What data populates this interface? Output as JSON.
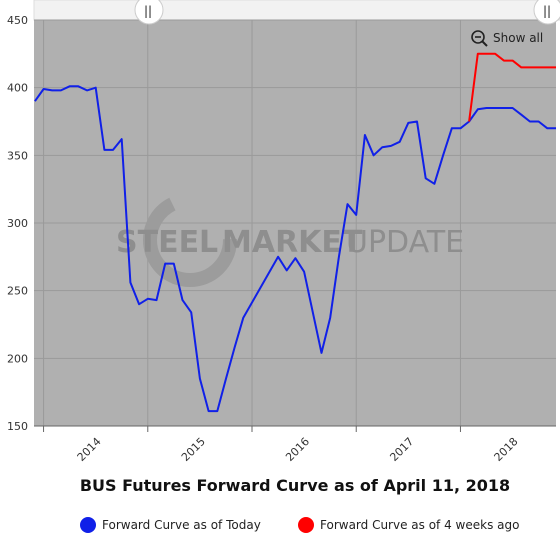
{
  "chart_data": {
    "type": "line",
    "title": "BUS Futures Forward Curve as of April 11, 2018",
    "xlabel": "",
    "ylabel": "",
    "ylim": [
      150,
      450
    ],
    "y_ticks": [
      150,
      200,
      250,
      300,
      350,
      400,
      450
    ],
    "x_tick_labels": [
      "2014",
      "2015",
      "2016",
      "2017",
      "2018"
    ],
    "x_range": [
      "2013-12",
      "2018-12"
    ],
    "grid": true,
    "legend_position": "bottom",
    "series": [
      {
        "name": "Forward Curve as of Today",
        "color": "#1020e8",
        "x": [
          "2013-12",
          "2014-01",
          "2014-02",
          "2014-03",
          "2014-04",
          "2014-05",
          "2014-06",
          "2014-07",
          "2014-08",
          "2014-09",
          "2014-10",
          "2014-11",
          "2014-12",
          "2015-01",
          "2015-02",
          "2015-03",
          "2015-04",
          "2015-05",
          "2015-06",
          "2015-07",
          "2015-08",
          "2015-09",
          "2015-10",
          "2015-11",
          "2015-12",
          "2016-04",
          "2016-05",
          "2016-06",
          "2016-07",
          "2016-09",
          "2016-10",
          "2016-11",
          "2016-12",
          "2017-01",
          "2017-02",
          "2017-03",
          "2017-04",
          "2017-05",
          "2017-06",
          "2017-07",
          "2017-08",
          "2017-09",
          "2017-10",
          "2017-11",
          "2017-12",
          "2018-01",
          "2018-02",
          "2018-03",
          "2018-04",
          "2018-05",
          "2018-06",
          "2018-07",
          "2018-08",
          "2018-09",
          "2018-10",
          "2018-11",
          "2018-12"
        ],
        "values": [
          390,
          399,
          398,
          398,
          401,
          401,
          398,
          400,
          354,
          354,
          362,
          256,
          240,
          244,
          243,
          270,
          270,
          243,
          234,
          185,
          161,
          161,
          185,
          208,
          230,
          275,
          265,
          274,
          264,
          204,
          230,
          275,
          314,
          306,
          365,
          350,
          356,
          357,
          360,
          374,
          375,
          333,
          329,
          350,
          370,
          370,
          375,
          384,
          385,
          385,
          385,
          385,
          380,
          375,
          375,
          370,
          370
        ]
      },
      {
        "name": "Forward Curve as of 4 weeks ago",
        "color": "#ff0000",
        "x": [
          "2018-02",
          "2018-03",
          "2018-04",
          "2018-05",
          "2018-06",
          "2018-07",
          "2018-08",
          "2018-09",
          "2018-10",
          "2018-11",
          "2018-12"
        ],
        "values": [
          375,
          425,
          425,
          425,
          420,
          420,
          415,
          415,
          415,
          415,
          415
        ]
      }
    ]
  },
  "zoom": {
    "show_all_label": "Show all",
    "icon": "zoom-out-icon",
    "handle_left_glyph": "||",
    "handle_right_glyph": "||"
  },
  "watermark": {
    "part1": "STEEL",
    "part2": "MARKET",
    "part3": "UPDATE"
  },
  "colors": {
    "plot_background": "#b0b0b0",
    "grid": "#9a9a9a",
    "today": "#1020e8",
    "four_weeks_ago": "#ff0000"
  }
}
